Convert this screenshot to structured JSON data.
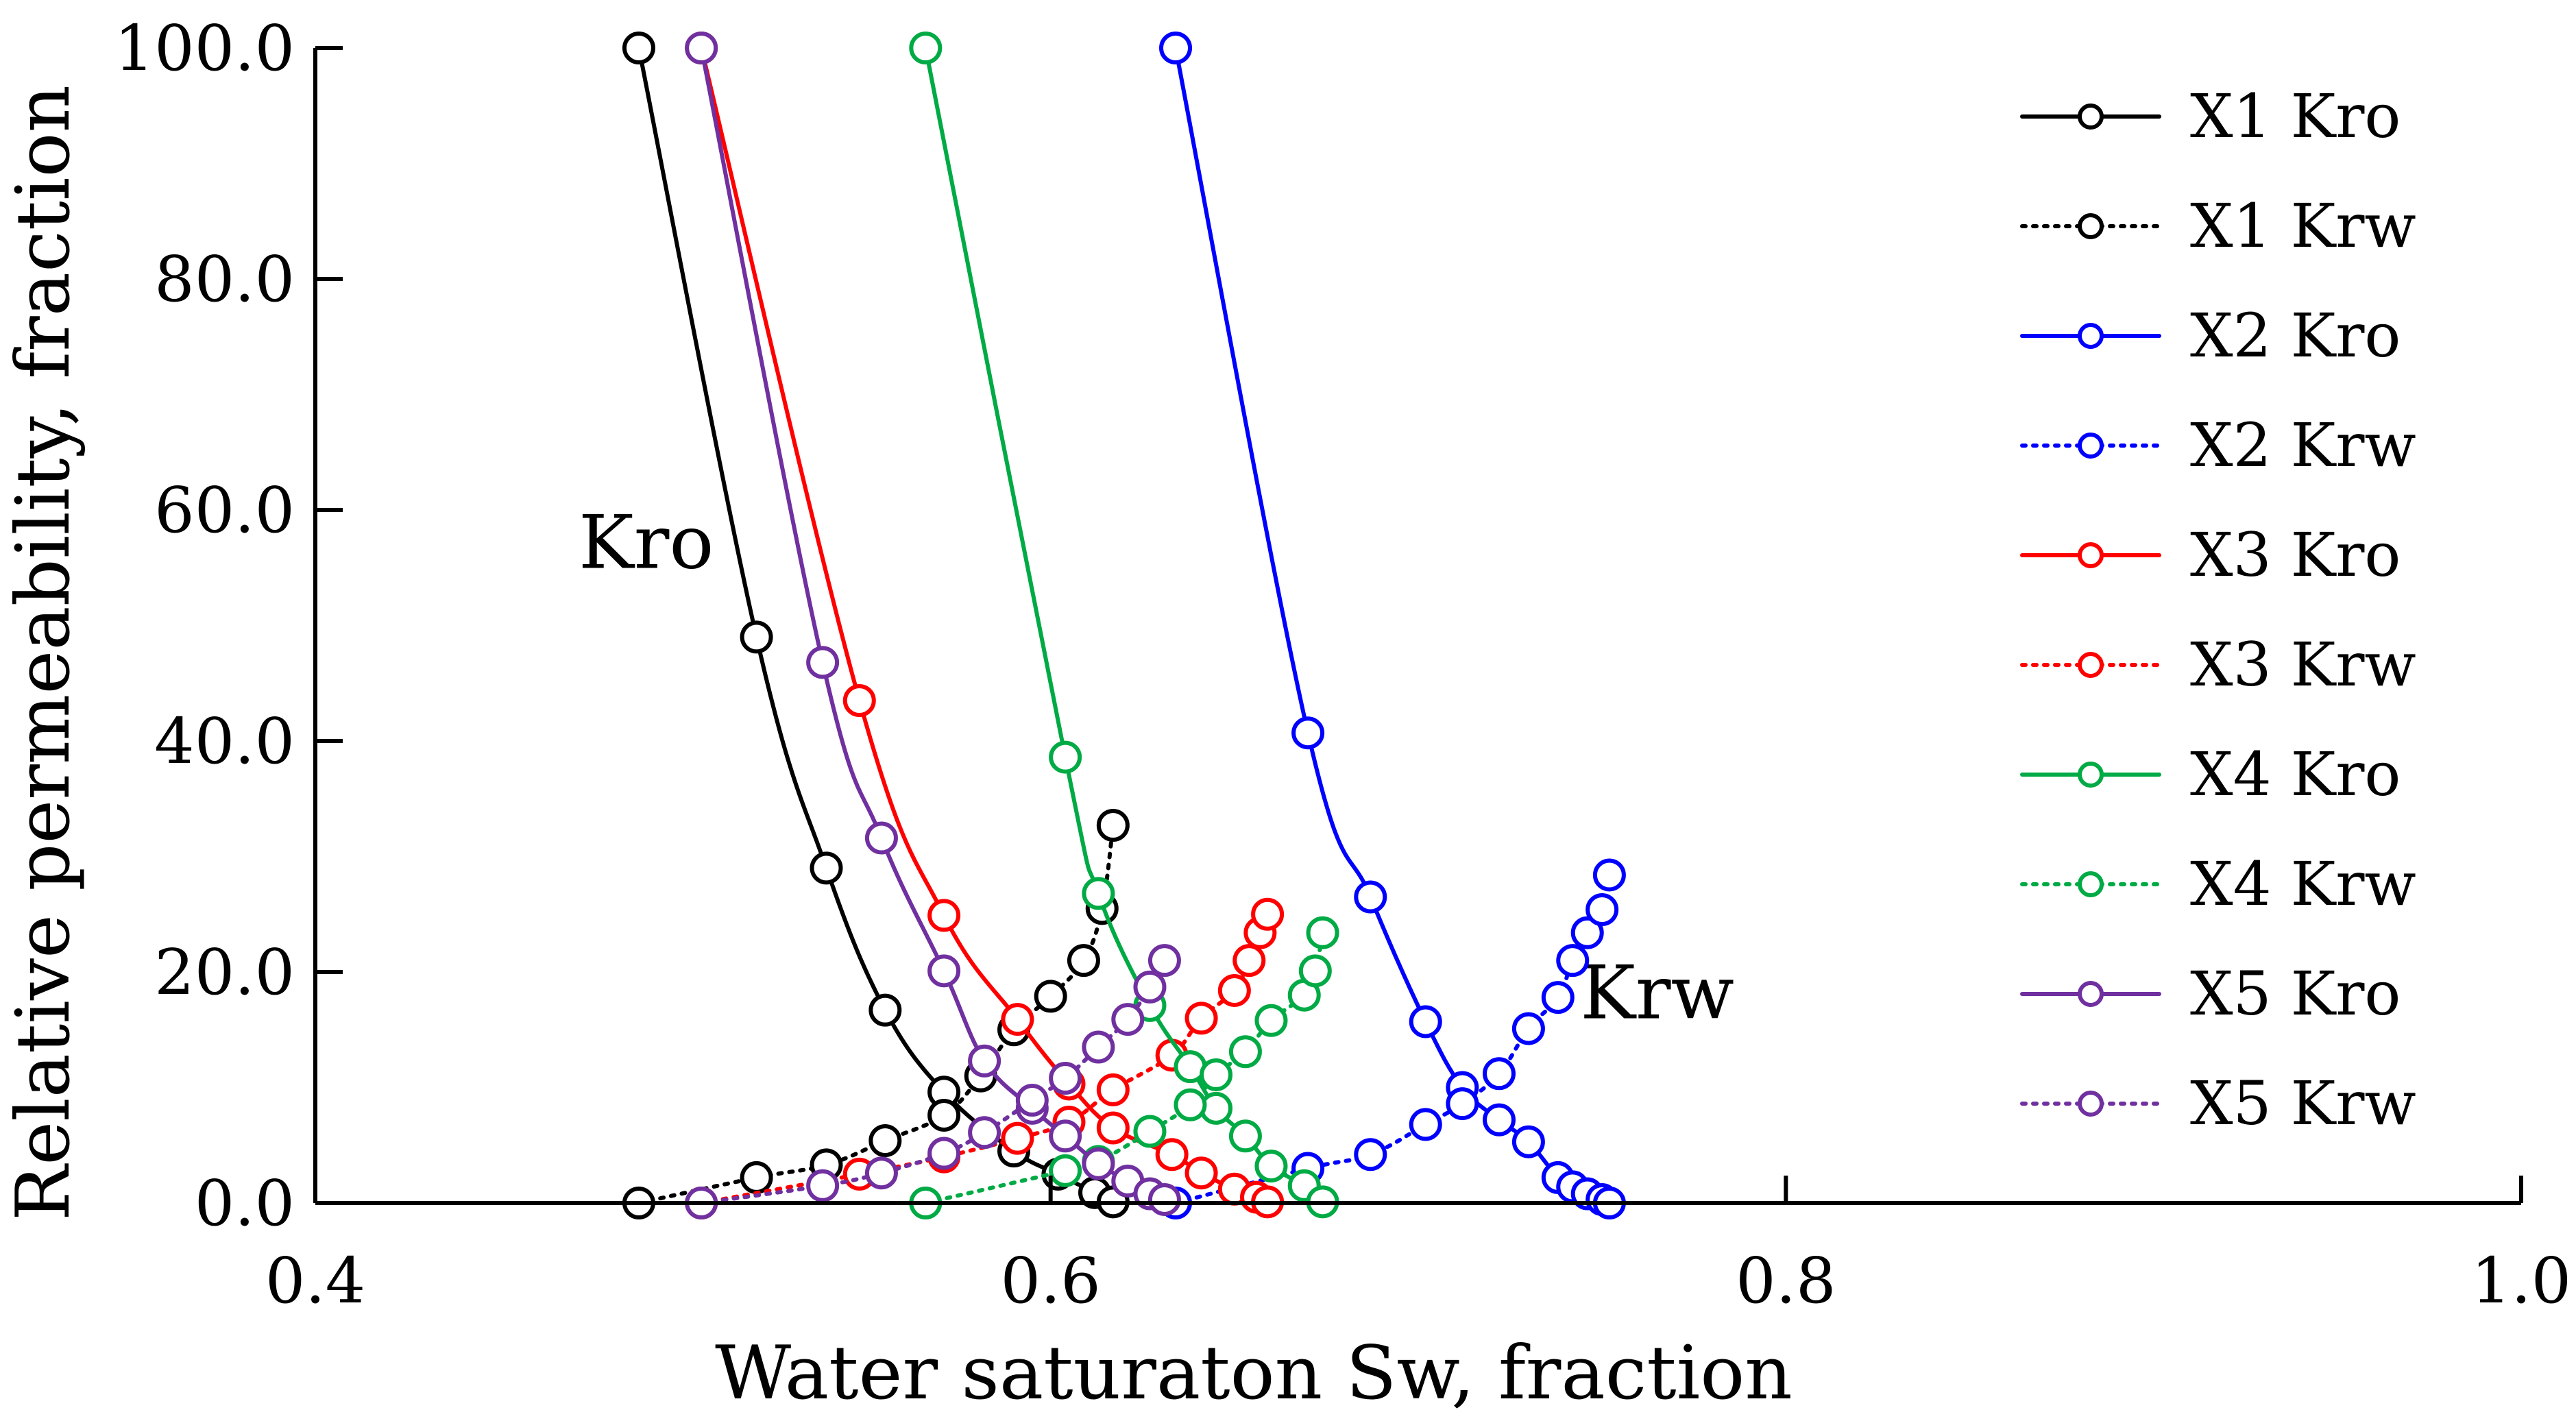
{
  "chart_data": {
    "type": "line",
    "title": "",
    "xlabel": "Water saturaton Sw, fraction",
    "ylabel": "Relative permeability, fraction",
    "xlim": [
      0.4,
      1.0
    ],
    "ylim": [
      0,
      100
    ],
    "x_ticks": [
      0.4,
      0.6,
      0.8,
      1.0
    ],
    "x_tick_labels": [
      "0.4",
      "0.6",
      "0.8",
      "1.0"
    ],
    "y_ticks": [
      0,
      20,
      40,
      60,
      80,
      100
    ],
    "y_tick_labels": [
      "0.0",
      "20.0",
      "40.0",
      "60.0",
      "80.0",
      "100.0"
    ],
    "grid": false,
    "legend_position": "right",
    "annotations": [
      {
        "text": "Kro",
        "x": 0.49,
        "y": 55
      },
      {
        "text": "Krw",
        "x": 0.765,
        "y": 16
      }
    ],
    "series": [
      {
        "name": "X1 Kro",
        "color": "#000000",
        "dash": "solid",
        "x": [
          0.488,
          0.52,
          0.539,
          0.555,
          0.571,
          0.59,
          0.602,
          0.612,
          0.617
        ],
        "y": [
          100,
          49.0,
          29.0,
          16.7,
          9.6,
          4.5,
          2.5,
          0.9,
          0.1
        ]
      },
      {
        "name": "X1 Krw",
        "color": "#000000",
        "dash": "dotted",
        "x": [
          0.488,
          0.52,
          0.539,
          0.555,
          0.571,
          0.581,
          0.59,
          0.6,
          0.609,
          0.614,
          0.617
        ],
        "y": [
          0.0,
          2.2,
          3.3,
          5.4,
          7.6,
          11.0,
          15.0,
          17.9,
          21.0,
          25.5,
          32.7
        ]
      },
      {
        "name": "X2 Kro",
        "color": "#0000ff",
        "dash": "solid",
        "x": [
          0.634,
          0.67,
          0.687,
          0.702,
          0.712,
          0.722,
          0.73,
          0.738,
          0.742,
          0.746,
          0.75,
          0.752
        ],
        "y": [
          100,
          40.7,
          26.5,
          15.7,
          10.0,
          7.2,
          5.3,
          2.2,
          1.4,
          0.8,
          0.3,
          0.0
        ]
      },
      {
        "name": "X2 Krw",
        "color": "#0000ff",
        "dash": "dotted",
        "x": [
          0.634,
          0.67,
          0.687,
          0.702,
          0.712,
          0.722,
          0.73,
          0.738,
          0.742,
          0.746,
          0.75,
          0.752
        ],
        "y": [
          0.0,
          3.0,
          4.2,
          6.8,
          8.6,
          11.2,
          15.1,
          17.8,
          21.0,
          23.4,
          25.4,
          28.4
        ]
      },
      {
        "name": "X3 Kro",
        "color": "#ff0000",
        "dash": "solid",
        "x": [
          0.505,
          0.548,
          0.571,
          0.591,
          0.605,
          0.617,
          0.633,
          0.641,
          0.65,
          0.656,
          0.659
        ],
        "y": [
          100,
          43.5,
          24.9,
          15.9,
          10.3,
          6.5,
          4.2,
          2.6,
          1.2,
          0.5,
          0.1
        ]
      },
      {
        "name": "X3 Krw",
        "color": "#ff0000",
        "dash": "dotted",
        "x": [
          0.505,
          0.548,
          0.571,
          0.591,
          0.605,
          0.617,
          0.633,
          0.641,
          0.65,
          0.654,
          0.657,
          0.659
        ],
        "y": [
          0.0,
          2.5,
          4.0,
          5.6,
          7.0,
          9.8,
          12.8,
          16.0,
          18.4,
          21.0,
          23.4,
          25.0
        ]
      },
      {
        "name": "X4 Kro",
        "color": "#00aa44",
        "dash": "solid",
        "x": [
          0.566,
          0.604,
          0.613,
          0.627,
          0.638,
          0.645,
          0.653,
          0.66,
          0.669,
          0.674
        ],
        "y": [
          100,
          38.6,
          26.8,
          17.1,
          11.8,
          8.2,
          5.8,
          3.2,
          1.5,
          0.1
        ]
      },
      {
        "name": "X4 Krw",
        "color": "#00aa44",
        "dash": "dotted",
        "x": [
          0.566,
          0.604,
          0.613,
          0.627,
          0.638,
          0.645,
          0.653,
          0.66,
          0.669,
          0.672,
          0.674
        ],
        "y": [
          0.0,
          2.8,
          3.6,
          6.2,
          8.5,
          11.1,
          13.1,
          15.8,
          18.0,
          20.1,
          23.4
        ]
      },
      {
        "name": "X5 Kro",
        "color": "#7030a0",
        "dash": "solid",
        "x": [
          0.505,
          0.538,
          0.554,
          0.571,
          0.582,
          0.595,
          0.604,
          0.613,
          0.621,
          0.627,
          0.631
        ],
        "y": [
          100,
          46.8,
          31.6,
          20.1,
          12.3,
          8.2,
          5.8,
          3.4,
          1.9,
          0.8,
          0.3
        ]
      },
      {
        "name": "X5 Krw",
        "color": "#7030a0",
        "dash": "dotted",
        "x": [
          0.505,
          0.538,
          0.554,
          0.571,
          0.582,
          0.595,
          0.604,
          0.613,
          0.621,
          0.627,
          0.631
        ],
        "y": [
          0.0,
          1.5,
          2.6,
          4.3,
          6.1,
          8.9,
          10.8,
          13.5,
          15.9,
          18.7,
          21.0
        ]
      }
    ]
  }
}
